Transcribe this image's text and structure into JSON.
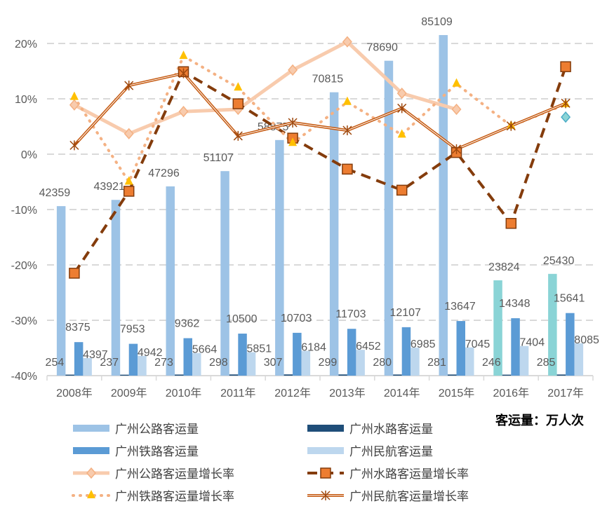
{
  "chart_data": {
    "type": "bar+line",
    "categories": [
      "2008年",
      "2009年",
      "2010年",
      "2011年",
      "2012年",
      "2013年",
      "2014年",
      "2015年",
      "2016年",
      "2017年"
    ],
    "unit_note": "客运量：万人次",
    "y_left": {
      "ticks": [
        "20%",
        "10%",
        "0%",
        "-10%",
        "-20%",
        "-30%",
        "-40%"
      ],
      "range": [
        -40,
        20
      ]
    },
    "y_right_range": [
      0,
      90000
    ],
    "bars": [
      {
        "name": "广州公路客运量",
        "color": "#9DC3E6",
        "alt_color": "#8AD4D6",
        "values": [
          42359,
          43921,
          47296,
          51107,
          58875,
          70815,
          78690,
          85109,
          23824,
          25430
        ]
      },
      {
        "name": "广州水路客运量",
        "color": "#1F4E79",
        "values": [
          254,
          237,
          273,
          298,
          307,
          299,
          280,
          281,
          246,
          285
        ]
      },
      {
        "name": "广州铁路客运量",
        "color": "#5B9BD5",
        "values": [
          8375,
          7953,
          9362,
          10500,
          10703,
          11703,
          12107,
          13647,
          14348,
          15641
        ]
      },
      {
        "name": "广州民航客运量",
        "color": "#BDD7EE",
        "values": [
          4397,
          4942,
          5664,
          5851,
          6184,
          6452,
          6985,
          7045,
          7404,
          8085
        ]
      }
    ],
    "lines": [
      {
        "name": "广州公路客运量增长率",
        "color": "#F8CBAD",
        "marker": "diamond",
        "values": [
          8.9,
          3.7,
          7.7,
          8.1,
          15.2,
          20.3,
          11.0,
          8.1,
          null,
          6.7
        ]
      },
      {
        "name": "广州水路客运量增长率",
        "color": "#843C0C",
        "marker": "square",
        "values": [
          -21.5,
          -6.7,
          14.9,
          9.1,
          2.9,
          -2.7,
          -6.5,
          0.3,
          -12.5,
          15.8
        ]
      },
      {
        "name": "广州铁路客运量增长率",
        "color": "#F4B183",
        "marker": "triangle",
        "values": [
          10.3,
          -5.0,
          17.7,
          12.0,
          2.0,
          9.4,
          3.5,
          12.7,
          5.1,
          9.0
        ]
      },
      {
        "name": "广州民航客运量增长率",
        "color": "#C55A11",
        "marker": "star",
        "values": [
          1.6,
          12.4,
          14.6,
          3.3,
          5.7,
          4.3,
          8.3,
          0.9,
          5.1,
          9.2
        ]
      }
    ],
    "grid": true,
    "legend_position": "bottom"
  }
}
